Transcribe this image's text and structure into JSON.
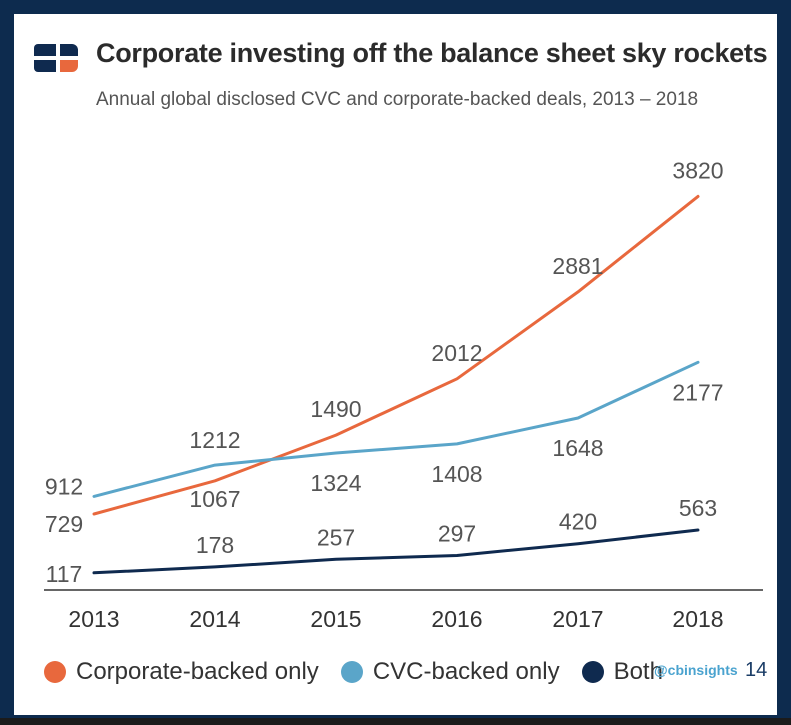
{
  "header": {
    "title": "Corporate investing off the balance sheet sky rockets",
    "subtitle": "Annual global disclosed CVC and corporate-backed deals, 2013 – 2018"
  },
  "footer": {
    "handle": "@cbinsights",
    "page_number": "14"
  },
  "colors": {
    "corporate": "#e8683d",
    "cvc": "#5aa5c9",
    "both": "#0f2a4f",
    "axis": "#333333",
    "label": "#555555"
  },
  "logo": {
    "icon": "cb-insights-logo-icon"
  },
  "chart_data": {
    "type": "line",
    "title": "Corporate investing off the balance sheet sky rockets",
    "subtitle": "Annual global disclosed CVC and corporate-backed deals, 2013 – 2018",
    "categories": [
      "2013",
      "2014",
      "2015",
      "2016",
      "2017",
      "2018"
    ],
    "series": [
      {
        "name": "Corporate-backed only",
        "color": "#e8683d",
        "values": [
          729,
          1067,
          1490,
          2012,
          2881,
          3820
        ]
      },
      {
        "name": "CVC-backed only",
        "color": "#5aa5c9",
        "values": [
          912,
          1212,
          1324,
          1408,
          1648,
          2177
        ]
      },
      {
        "name": "Both",
        "color": "#0f2a4f",
        "values": [
          117,
          178,
          257,
          297,
          420,
          563
        ]
      }
    ],
    "ylim": [
      0,
      4000
    ],
    "grid": false,
    "legend_position": "bottom"
  }
}
